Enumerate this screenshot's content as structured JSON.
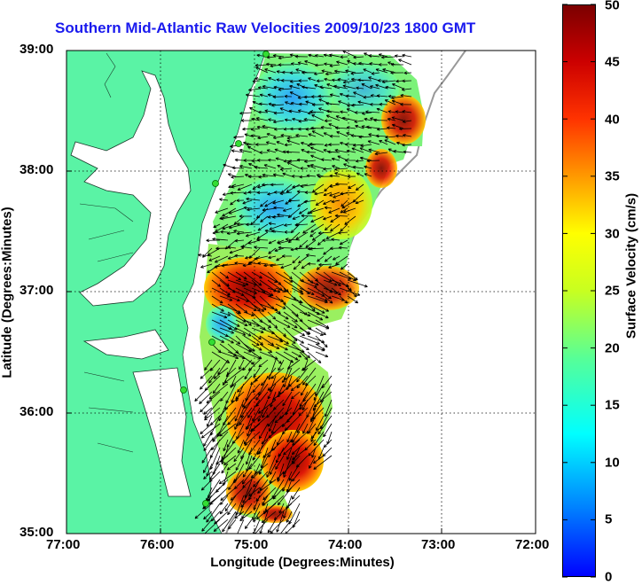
{
  "title": "Southern Mid-Atlantic Raw Velocities 2009/10/23 1800 GMT",
  "x_axis": {
    "label": "Longitude (Degrees:Minutes)",
    "ticks": [
      "77:00",
      "76:00",
      "75:00",
      "74:00",
      "73:00",
      "72:00"
    ]
  },
  "y_axis": {
    "label": "Latitude (Degrees:Minutes)",
    "ticks": [
      "39:00",
      "38:00",
      "37:00",
      "36:00",
      "35:00"
    ]
  },
  "colorbar": {
    "label": "Surface Velocity (cm/s)",
    "ticks": [
      "50",
      "45",
      "40",
      "35",
      "30",
      "25",
      "20",
      "15",
      "10",
      "5",
      "0"
    ],
    "min": 0,
    "max": 50,
    "colormap": [
      "#0000ff",
      "#00bfff",
      "#00ffff",
      "#55ff99",
      "#c8ff20",
      "#ffff00",
      "#ff9900",
      "#ff2200",
      "#8b0000"
    ]
  },
  "map": {
    "land_color": "#5af3a5",
    "water_color": "#ffffff",
    "grid": true,
    "hf_radar_sites": 6
  },
  "chart_data": {
    "type": "heatmap",
    "title": "Southern Mid-Atlantic Raw Velocities 2009/10/23 1800 GMT",
    "xlabel": "Longitude (Degrees:Minutes)",
    "ylabel": "Latitude (Degrees:Minutes)",
    "xlim": [
      -77,
      -72
    ],
    "ylim": [
      35,
      39
    ],
    "colorbar_range": [
      0,
      50
    ],
    "units": "cm/s",
    "grid": true,
    "regions": [
      {
        "lon": -74.3,
        "lat": 38.5,
        "speed": 18
      },
      {
        "lon": -74.6,
        "lat": 38.8,
        "speed": 12
      },
      {
        "lon": -74.9,
        "lat": 37.7,
        "speed": 8
      },
      {
        "lon": -74.2,
        "lat": 37.5,
        "speed": 32
      },
      {
        "lon": -74.8,
        "lat": 37.0,
        "speed": 45
      },
      {
        "lon": -74.3,
        "lat": 36.9,
        "speed": 40
      },
      {
        "lon": -75.1,
        "lat": 36.6,
        "speed": 12
      },
      {
        "lon": -74.7,
        "lat": 36.1,
        "speed": 48
      },
      {
        "lon": -74.4,
        "lat": 35.6,
        "speed": 50
      },
      {
        "lon": -74.8,
        "lat": 35.5,
        "speed": 38
      }
    ]
  }
}
